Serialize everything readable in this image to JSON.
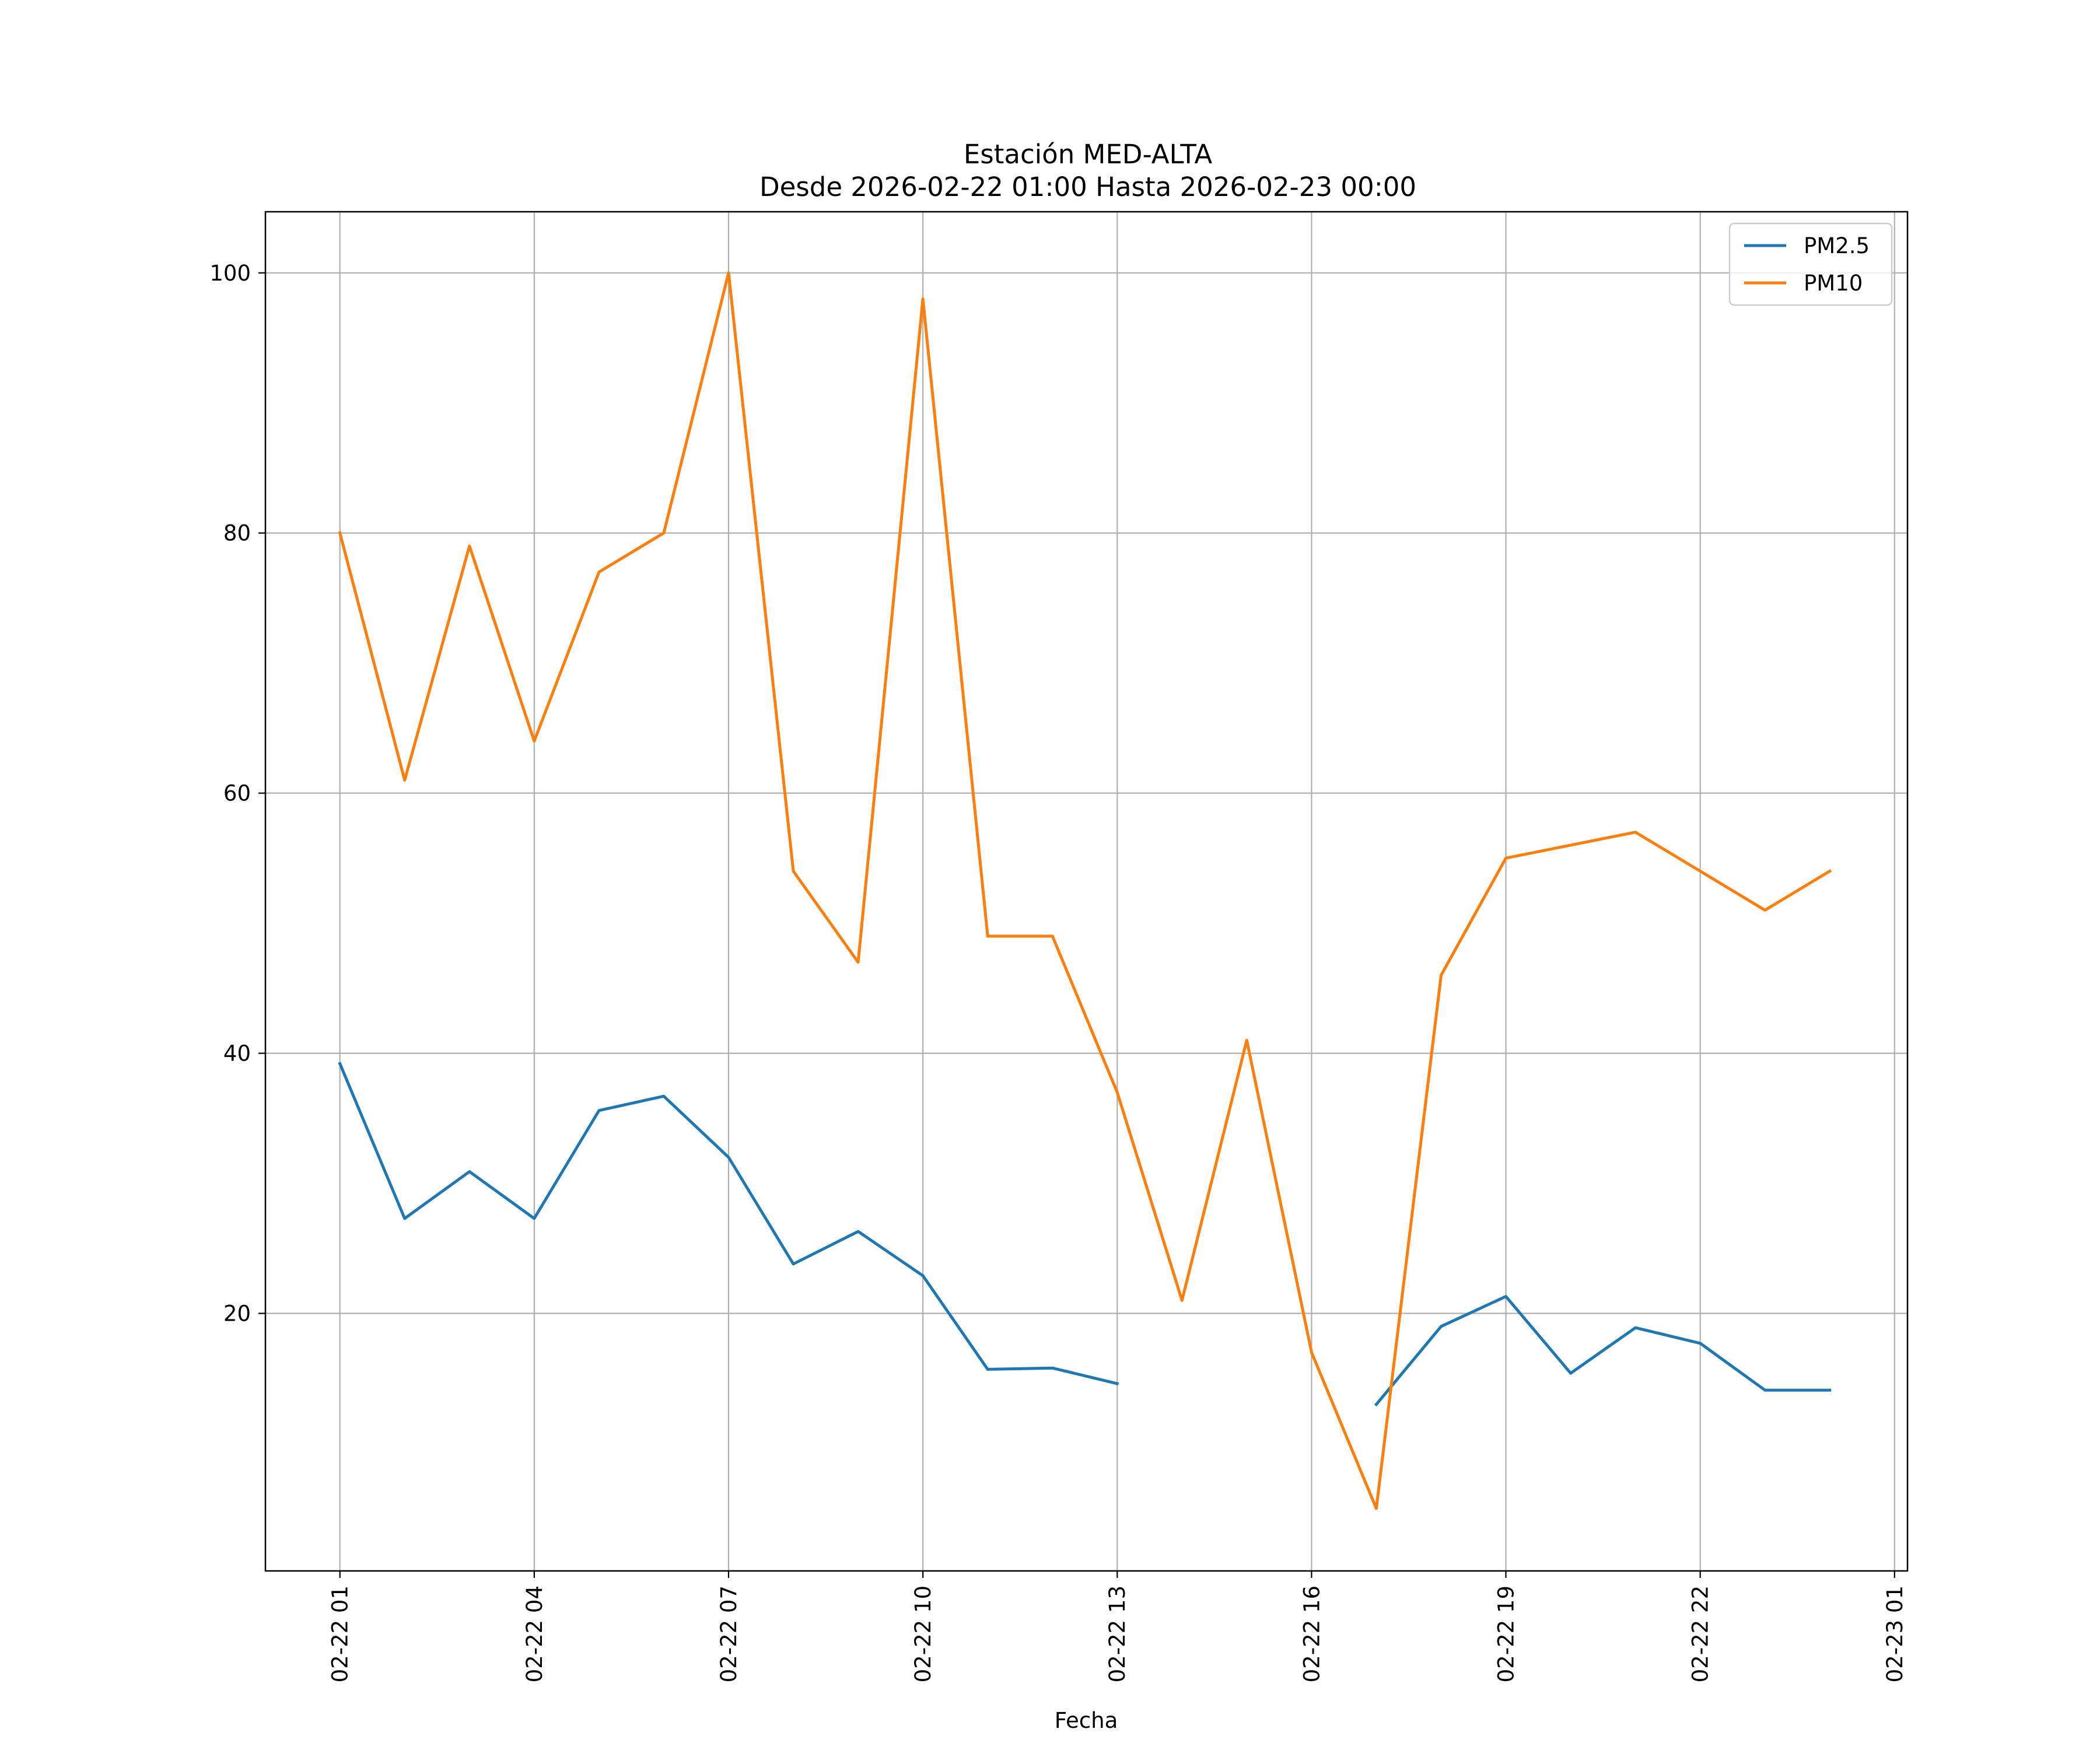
{
  "chart_data": {
    "type": "line",
    "title": "Estación MED-ALTA",
    "subtitle": "Desde 2026-02-22 01:00 Hasta 2026-02-23 00:00",
    "xlabel": "Fecha",
    "ylabel": "",
    "grid": true,
    "legend_position": "top-right",
    "x_ticks": [
      "02-22 01",
      "02-22 04",
      "02-22 07",
      "02-22 10",
      "02-22 13",
      "02-22 16",
      "02-22 19",
      "02-22 22",
      "02-23 01"
    ],
    "x_tick_hours": [
      1,
      4,
      7,
      10,
      13,
      16,
      19,
      22,
      25
    ],
    "xlim": [
      -0.15,
      25.2
    ],
    "y_ticks": [
      20,
      40,
      60,
      80,
      100
    ],
    "ylim": [
      0.2,
      104.7
    ],
    "x_hours": [
      1,
      2,
      3,
      4,
      5,
      6,
      7,
      8,
      9,
      10,
      11,
      12,
      13,
      14,
      15,
      16,
      17,
      18,
      19,
      20,
      21,
      22,
      23,
      24
    ],
    "series": [
      {
        "name": "PM2.5",
        "color": "#1f77b4",
        "values": [
          39.2,
          27.3,
          30.9,
          27.3,
          35.6,
          36.7,
          32.0,
          23.8,
          26.3,
          22.9,
          15.7,
          15.8,
          14.6,
          null,
          null,
          null,
          13.0,
          19.0,
          21.3,
          15.4,
          18.9,
          17.7,
          14.1,
          14.1
        ]
      },
      {
        "name": "PM10",
        "color": "#ff7f0e",
        "values": [
          80,
          61,
          79,
          64,
          77,
          80,
          100,
          54,
          47,
          98,
          49,
          49,
          37,
          21,
          41,
          17,
          5,
          46,
          55,
          56,
          57,
          54,
          51,
          54
        ]
      }
    ]
  }
}
